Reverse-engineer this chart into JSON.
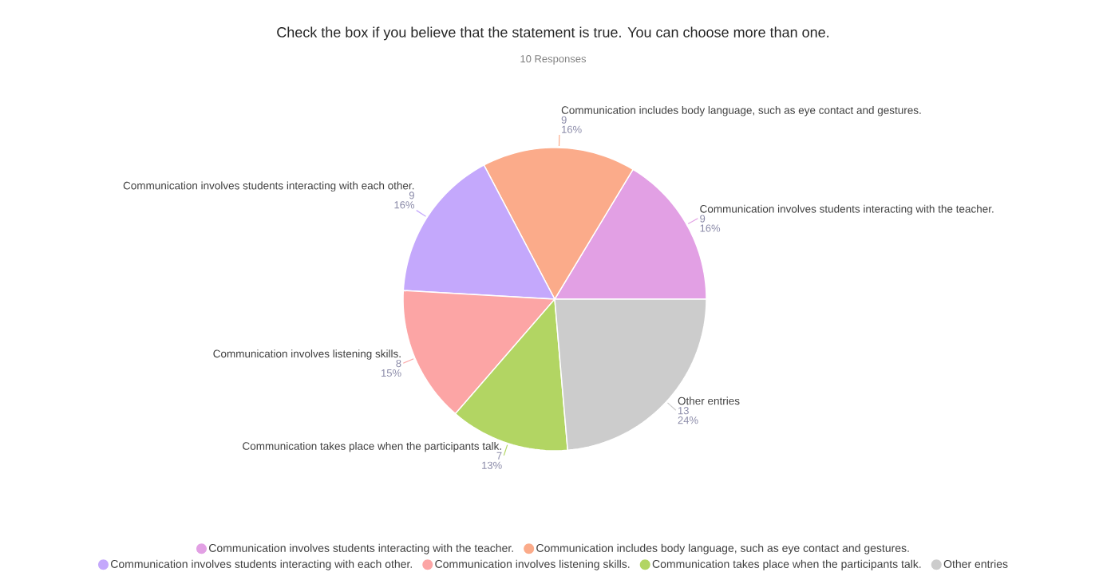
{
  "chart_data": {
    "type": "pie",
    "title": "Check the box if you believe that the statement is true. You can choose more than one.",
    "subtitle": "10 Responses",
    "categories": [
      "Communication involves students interacting with the teacher.",
      "Communication includes body language, such as eye contact and gestures.",
      "Communication involves students interacting with each other.",
      "Communication involves listening skills.",
      "Communication takes place when the participants talk.",
      "Other entries"
    ],
    "values": [
      9,
      9,
      9,
      8,
      7,
      13
    ],
    "colors": [
      "#e2a0e4",
      "#fbab8a",
      "#c4a8fc",
      "#fca5a5",
      "#b2d563",
      "#cccccc"
    ],
    "value_labels": [
      "9",
      "9",
      "9",
      "8",
      "7",
      "13"
    ],
    "annotations": [
      "16%",
      "16%",
      "16%",
      "15%",
      "13%",
      "24%"
    ],
    "legend": "bottom"
  }
}
